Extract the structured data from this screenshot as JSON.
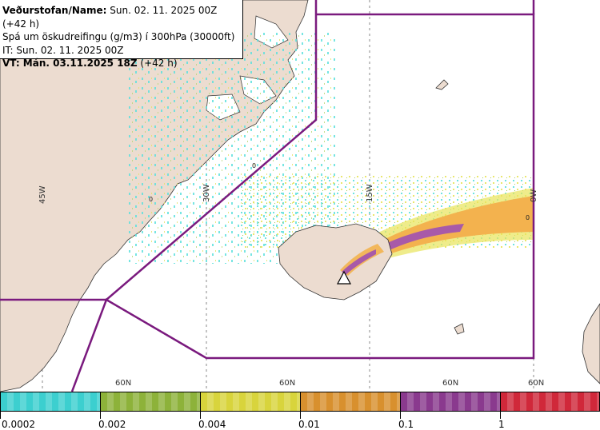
{
  "header": {
    "line1_bold": "Veðurstofan/Name:",
    "line1_rest": " Sun. 02. 11. 2025 00Z (+42 h)",
    "line2": "Spá um öskudreifingu (g/m3) í 300hPa (30000ft)",
    "line3": "IT: Sun. 02. 11. 2025 00Z",
    "line4_bold": "VT: Mán. 03.11.2025 18Z",
    "line4_rest": " (+42 h)"
  },
  "map": {
    "longitude_labels": [
      "45W",
      "30W",
      "15W",
      "0W"
    ],
    "latitude_labels": [
      "60N",
      "60N",
      "60N",
      "60N"
    ],
    "contour_labels": [
      "0",
      "0",
      "0"
    ],
    "colors": {
      "land": "#ecdcd0",
      "sea": "#ffffff",
      "boundary": "#7a1a7e",
      "ash_lightest": "#3fd9d6",
      "ash_light": "#8fb63a",
      "ash_mid": "#e8e45a",
      "ash_high": "#f3b24e",
      "ash_higher": "#a85aa8",
      "ash_max": "#d8293a"
    }
  },
  "legend": {
    "items": [
      {
        "color": "#3ccfcf",
        "label": "0.0002"
      },
      {
        "color": "#8db23a",
        "label": "0.002"
      },
      {
        "color": "#d8d43c",
        "label": "0.004"
      },
      {
        "color": "#d8902e",
        "label": "0.01"
      },
      {
        "color": "#8a3a8e",
        "label": "0.1"
      },
      {
        "color": "#d0283a",
        "label": "1"
      }
    ]
  }
}
